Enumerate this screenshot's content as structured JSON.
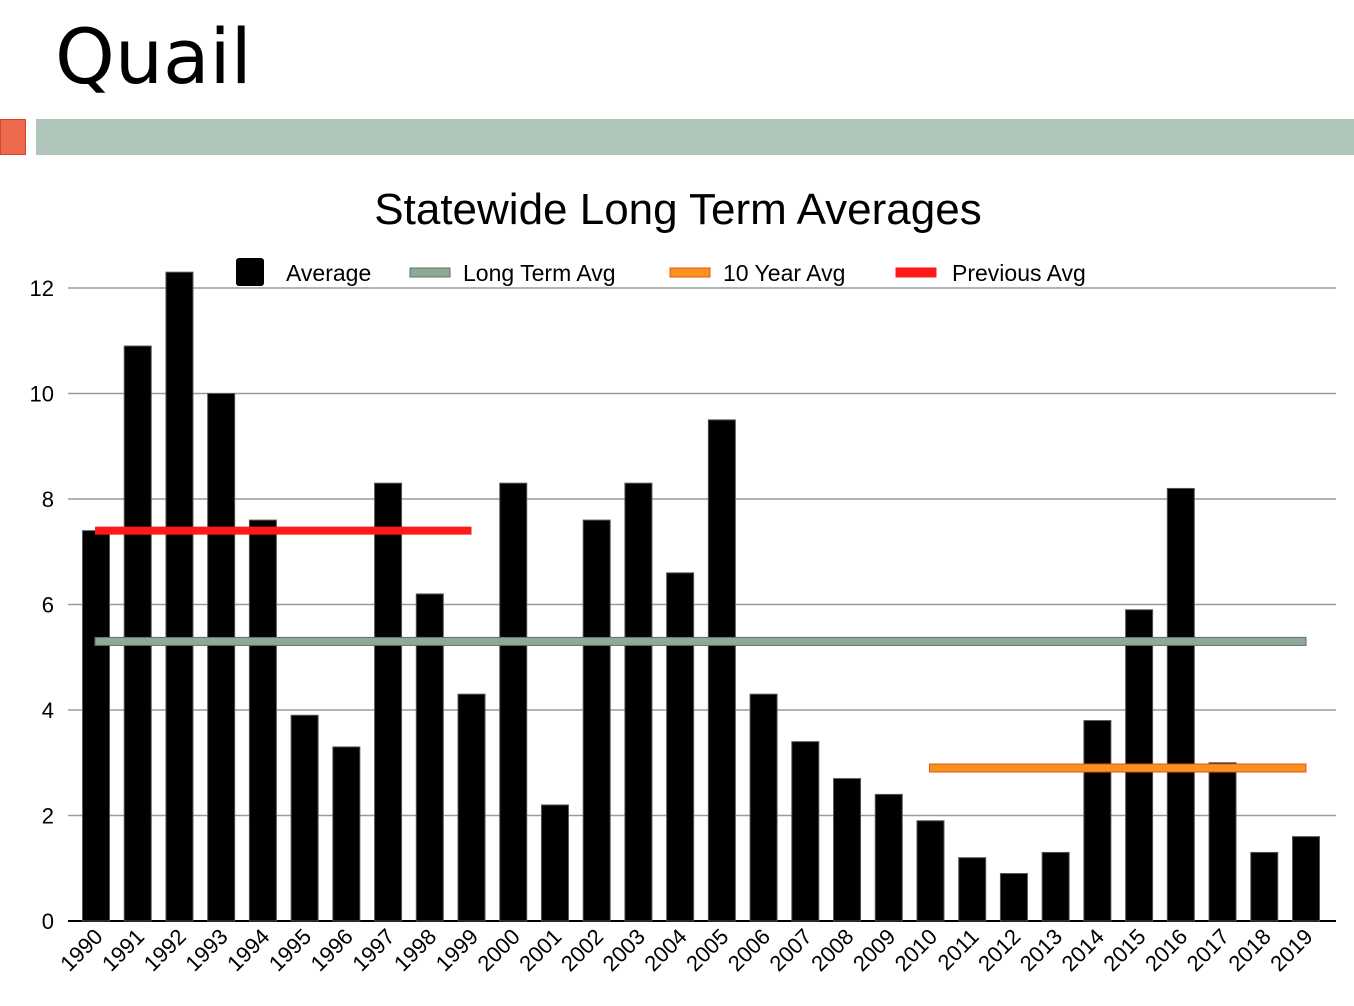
{
  "slide": {
    "title": "Quail"
  },
  "colors": {
    "accent_square": "#ee6a4f",
    "accent_bar": "#b1c6ba"
  },
  "chart_data": {
    "type": "bar",
    "title": "Statewide Long Term Averages",
    "xlabel": "",
    "ylabel": "",
    "ylim": [
      0,
      12
    ],
    "yticks": [
      0,
      2,
      4,
      6,
      8,
      10,
      12
    ],
    "grid": true,
    "legend_placement": "top",
    "categories": [
      "1990",
      "1991",
      "1992",
      "1993",
      "1994",
      "1995",
      "1996",
      "1997",
      "1998",
      "1999",
      "2000",
      "2001",
      "2002",
      "2003",
      "2004",
      "2005",
      "2006",
      "2007",
      "2008",
      "2009",
      "2010",
      "2011",
      "2012",
      "2013",
      "2014",
      "2015",
      "2016",
      "2017",
      "2018",
      "2019"
    ],
    "series": [
      {
        "name": "Average",
        "color": "#000000",
        "values": [
          7.4,
          10.9,
          12.3,
          10.0,
          7.6,
          3.9,
          3.3,
          8.3,
          6.2,
          4.3,
          8.3,
          2.2,
          7.6,
          8.3,
          6.6,
          9.5,
          4.3,
          3.4,
          2.7,
          2.4,
          1.9,
          1.2,
          0.9,
          1.3,
          3.8,
          5.9,
          8.2,
          3.0,
          1.3,
          1.6
        ]
      }
    ],
    "reference_lines": [
      {
        "name": "Long Term Avg",
        "color": "#8fa898",
        "value": 5.3,
        "from": "1990",
        "to": "2019"
      },
      {
        "name": "10 Year Avg",
        "color": "#f7931e",
        "value": 2.9,
        "from": "2010",
        "to": "2019"
      },
      {
        "name": "Previous Avg",
        "color": "#ff1a1a",
        "value": 7.4,
        "from": "1990",
        "to": "1999"
      }
    ]
  }
}
